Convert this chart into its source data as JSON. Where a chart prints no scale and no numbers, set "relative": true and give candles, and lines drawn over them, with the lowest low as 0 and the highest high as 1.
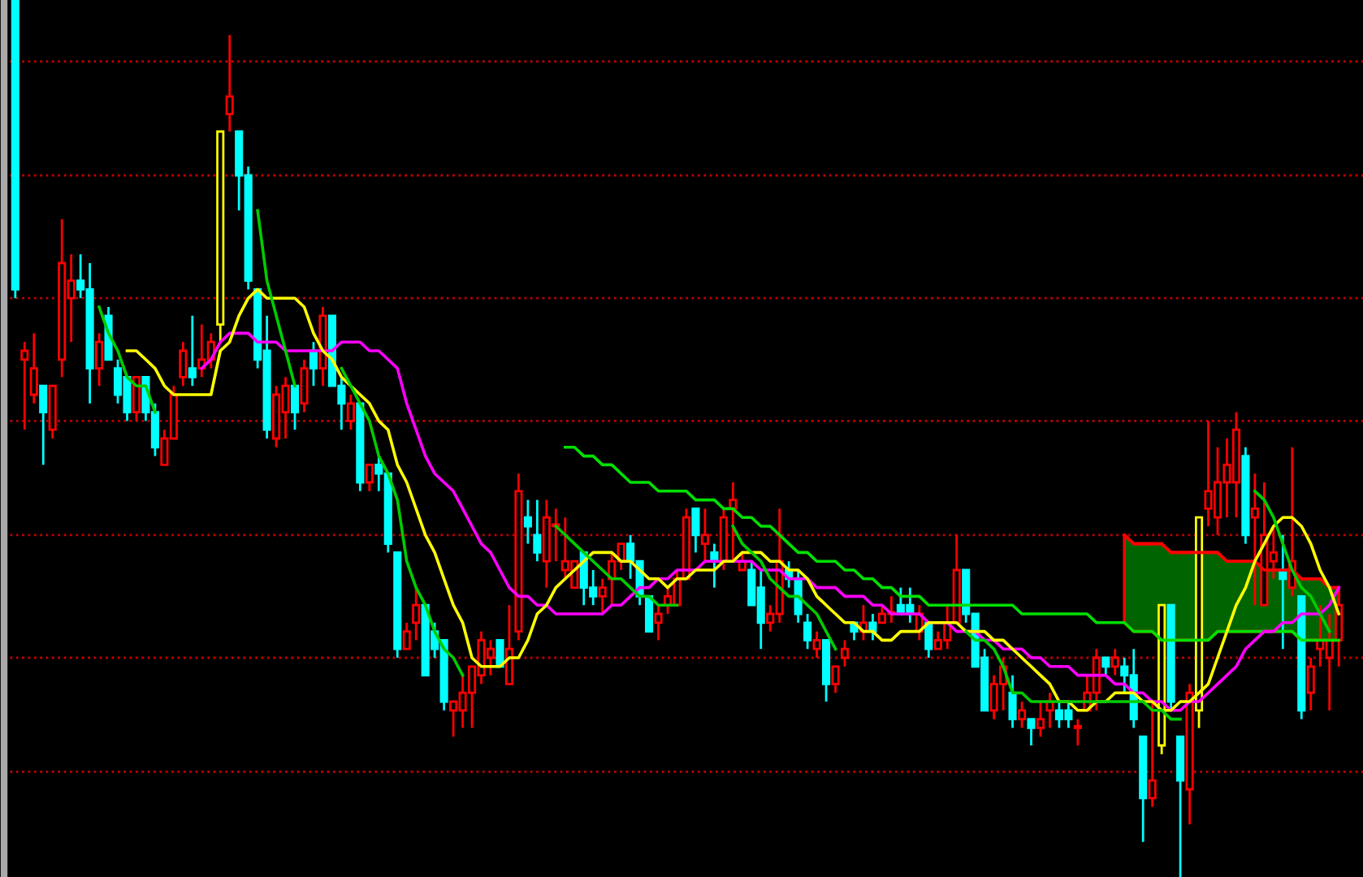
{
  "chart_data": {
    "type": "candlestick",
    "relative": true,
    "categories": [
      null,
      null,
      null,
      null,
      null,
      null,
      null,
      null,
      null,
      null,
      null,
      null,
      null,
      null,
      null,
      null,
      null,
      null,
      null,
      null,
      null,
      null,
      null,
      null,
      null,
      null,
      null,
      null,
      null,
      null,
      null,
      null,
      null,
      null,
      null,
      null,
      null,
      null,
      null,
      null,
      null,
      null,
      null,
      null,
      null,
      null,
      null,
      null,
      null,
      null,
      null,
      null,
      null,
      null,
      null,
      null,
      null,
      null,
      null,
      null,
      null,
      null,
      null,
      null,
      null,
      null,
      null,
      null,
      null,
      null,
      null,
      null,
      null,
      null,
      null,
      null,
      null,
      null,
      null,
      null,
      null,
      null,
      null,
      null,
      null,
      null,
      null,
      null,
      null,
      null,
      null,
      null,
      null,
      null,
      null,
      null,
      null,
      null,
      null,
      null,
      null,
      null,
      null,
      null,
      null,
      null,
      null,
      null,
      null,
      null,
      null,
      null,
      null,
      null,
      null,
      null,
      null,
      null,
      null,
      null,
      null,
      null,
      null,
      null,
      null,
      null,
      null,
      null,
      null,
      null,
      null,
      null,
      null,
      null,
      null,
      null,
      null,
      null,
      null,
      null,
      null,
      null,
      null
    ],
    "ohlc": [
      [
        1.0,
        1.0,
        0.66,
        0.67
      ],
      [
        0.59,
        0.61,
        0.51,
        0.6
      ],
      [
        0.55,
        0.62,
        0.54,
        0.58
      ],
      [
        0.56,
        0.56,
        0.47,
        0.53
      ],
      [
        0.51,
        0.56,
        0.5,
        0.56
      ],
      [
        0.59,
        0.75,
        0.57,
        0.7
      ],
      [
        0.66,
        0.71,
        0.61,
        0.68
      ],
      [
        0.68,
        0.71,
        0.66,
        0.67
      ],
      [
        0.67,
        0.7,
        0.54,
        0.58
      ],
      [
        0.58,
        0.62,
        0.56,
        0.61
      ],
      [
        0.64,
        0.65,
        0.59,
        0.59
      ],
      [
        0.58,
        0.59,
        0.54,
        0.55
      ],
      [
        0.57,
        0.57,
        0.52,
        0.53
      ],
      [
        0.53,
        0.57,
        0.52,
        0.57
      ],
      [
        0.57,
        0.57,
        0.52,
        0.53
      ],
      [
        0.53,
        0.54,
        0.48,
        0.49
      ],
      [
        0.47,
        0.51,
        0.47,
        0.5
      ],
      [
        0.5,
        0.56,
        0.5,
        0.55
      ],
      [
        0.57,
        0.61,
        0.56,
        0.6
      ],
      [
        0.58,
        0.64,
        0.56,
        0.57
      ],
      [
        0.58,
        0.63,
        0.57,
        0.59
      ],
      [
        0.59,
        0.62,
        0.58,
        0.61
      ],
      [
        0.63,
        0.85,
        0.61,
        0.85
      ],
      [
        0.87,
        0.96,
        0.85,
        0.89
      ],
      [
        0.85,
        0.85,
        0.76,
        0.8
      ],
      [
        0.8,
        0.81,
        0.67,
        0.68
      ],
      [
        0.67,
        0.67,
        0.58,
        0.59
      ],
      [
        0.6,
        0.64,
        0.5,
        0.51
      ],
      [
        0.5,
        0.56,
        0.49,
        0.55
      ],
      [
        0.53,
        0.57,
        0.5,
        0.56
      ],
      [
        0.56,
        0.56,
        0.51,
        0.53
      ],
      [
        0.54,
        0.59,
        0.53,
        0.58
      ],
      [
        0.6,
        0.61,
        0.56,
        0.58
      ],
      [
        0.58,
        0.65,
        0.56,
        0.64
      ],
      [
        0.64,
        0.64,
        0.56,
        0.56
      ],
      [
        0.56,
        0.57,
        0.51,
        0.54
      ],
      [
        0.52,
        0.55,
        0.51,
        0.54
      ],
      [
        0.54,
        0.54,
        0.44,
        0.45
      ],
      [
        0.45,
        0.47,
        0.44,
        0.47
      ],
      [
        0.47,
        0.48,
        0.44,
        0.46
      ],
      [
        0.46,
        0.46,
        0.37,
        0.38
      ],
      [
        0.37,
        0.37,
        0.25,
        0.26
      ],
      [
        0.26,
        0.29,
        0.26,
        0.28
      ],
      [
        0.29,
        0.33,
        0.27,
        0.31
      ],
      [
        0.31,
        0.31,
        0.23,
        0.23
      ],
      [
        0.28,
        0.29,
        0.25,
        0.26
      ],
      [
        0.27,
        0.27,
        0.19,
        0.2
      ],
      [
        0.19,
        0.2,
        0.16,
        0.2
      ],
      [
        0.19,
        0.23,
        0.17,
        0.21
      ],
      [
        0.21,
        0.24,
        0.17,
        0.24
      ],
      [
        0.23,
        0.28,
        0.22,
        0.27
      ],
      [
        0.25,
        0.27,
        0.23,
        0.26
      ],
      [
        0.27,
        0.27,
        0.24,
        0.24
      ],
      [
        0.22,
        0.31,
        0.22,
        0.26
      ],
      [
        0.28,
        0.46,
        0.27,
        0.44
      ],
      [
        0.41,
        0.43,
        0.38,
        0.4
      ],
      [
        0.39,
        0.43,
        0.36,
        0.37
      ],
      [
        0.36,
        0.43,
        0.33,
        0.41
      ],
      [
        0.4,
        0.42,
        0.36,
        0.4
      ],
      [
        0.35,
        0.41,
        0.34,
        0.36
      ],
      [
        0.33,
        0.36,
        0.33,
        0.36
      ],
      [
        0.37,
        0.37,
        0.31,
        0.33
      ],
      [
        0.33,
        0.35,
        0.31,
        0.32
      ],
      [
        0.32,
        0.34,
        0.3,
        0.33
      ],
      [
        0.34,
        0.37,
        0.31,
        0.36
      ],
      [
        0.36,
        0.38,
        0.35,
        0.38
      ],
      [
        0.38,
        0.39,
        0.34,
        0.36
      ],
      [
        0.36,
        0.36,
        0.31,
        0.32
      ],
      [
        0.32,
        0.32,
        0.28,
        0.28
      ],
      [
        0.29,
        0.31,
        0.27,
        0.3
      ],
      [
        0.31,
        0.33,
        0.3,
        0.32
      ],
      [
        0.31,
        0.35,
        0.31,
        0.34
      ],
      [
        0.34,
        0.42,
        0.34,
        0.41
      ],
      [
        0.42,
        0.42,
        0.37,
        0.39
      ],
      [
        0.38,
        0.42,
        0.36,
        0.39
      ],
      [
        0.37,
        0.38,
        0.33,
        0.36
      ],
      [
        0.36,
        0.42,
        0.35,
        0.41
      ],
      [
        0.42,
        0.45,
        0.36,
        0.43
      ],
      [
        0.35,
        0.37,
        0.35,
        0.36
      ],
      [
        0.35,
        0.36,
        0.31,
        0.31
      ],
      [
        0.33,
        0.35,
        0.26,
        0.29
      ],
      [
        0.29,
        0.31,
        0.28,
        0.3
      ],
      [
        0.3,
        0.42,
        0.29,
        0.36
      ],
      [
        0.35,
        0.36,
        0.33,
        0.34
      ],
      [
        0.34,
        0.35,
        0.29,
        0.3
      ],
      [
        0.29,
        0.3,
        0.26,
        0.27
      ],
      [
        0.26,
        0.28,
        0.25,
        0.27
      ],
      [
        0.27,
        0.27,
        0.2,
        0.22
      ],
      [
        0.22,
        0.24,
        0.21,
        0.24
      ],
      [
        0.25,
        0.27,
        0.24,
        0.26
      ],
      [
        0.29,
        0.29,
        0.27,
        0.28
      ],
      [
        0.28,
        0.31,
        0.27,
        0.29
      ],
      [
        0.29,
        0.3,
        0.27,
        0.28
      ],
      [
        0.29,
        0.31,
        0.29,
        0.3
      ],
      [
        0.3,
        0.32,
        0.29,
        0.3
      ],
      [
        0.31,
        0.33,
        0.3,
        0.3
      ],
      [
        0.31,
        0.33,
        0.29,
        0.3
      ],
      [
        0.28,
        0.31,
        0.27,
        0.3
      ],
      [
        0.29,
        0.29,
        0.25,
        0.26
      ],
      [
        0.26,
        0.28,
        0.26,
        0.27
      ],
      [
        0.27,
        0.31,
        0.26,
        0.29
      ],
      [
        0.29,
        0.39,
        0.29,
        0.35
      ],
      [
        0.35,
        0.35,
        0.29,
        0.3
      ],
      [
        0.3,
        0.3,
        0.24,
        0.24
      ],
      [
        0.25,
        0.26,
        0.19,
        0.19
      ],
      [
        0.19,
        0.23,
        0.18,
        0.22
      ],
      [
        0.22,
        0.25,
        0.19,
        0.24
      ],
      [
        0.21,
        0.23,
        0.17,
        0.18
      ],
      [
        0.18,
        0.2,
        0.17,
        0.19
      ],
      [
        0.18,
        0.18,
        0.15,
        0.17
      ],
      [
        0.17,
        0.2,
        0.16,
        0.18
      ],
      [
        0.19,
        0.21,
        0.17,
        0.2
      ],
      [
        0.19,
        0.2,
        0.17,
        0.18
      ],
      [
        0.19,
        0.2,
        0.17,
        0.18
      ],
      [
        0.17,
        0.18,
        0.15,
        0.17
      ],
      [
        0.19,
        0.23,
        0.19,
        0.21
      ],
      [
        0.21,
        0.26,
        0.19,
        0.25
      ],
      [
        0.25,
        0.25,
        0.23,
        0.24
      ],
      [
        0.24,
        0.26,
        0.23,
        0.25
      ],
      [
        0.24,
        0.25,
        0.21,
        0.23
      ],
      [
        0.23,
        0.26,
        0.17,
        0.18
      ],
      [
        0.16,
        0.16,
        0.04,
        0.09
      ],
      [
        0.09,
        0.2,
        0.08,
        0.11
      ],
      [
        0.15,
        0.31,
        0.14,
        0.31
      ],
      [
        0.31,
        0.31,
        0.19,
        0.2
      ],
      [
        0.16,
        0.16,
        0.0,
        0.11
      ],
      [
        0.1,
        0.22,
        0.06,
        0.21
      ],
      [
        0.19,
        0.41,
        0.17,
        0.41
      ],
      [
        0.42,
        0.52,
        0.4,
        0.44
      ],
      [
        0.41,
        0.49,
        0.39,
        0.45
      ],
      [
        0.45,
        0.5,
        0.41,
        0.47
      ],
      [
        0.45,
        0.53,
        0.41,
        0.51
      ],
      [
        0.48,
        0.49,
        0.38,
        0.39
      ],
      [
        0.41,
        0.46,
        0.31,
        0.42
      ],
      [
        0.31,
        0.45,
        0.31,
        0.39
      ],
      [
        0.36,
        0.4,
        0.34,
        0.37
      ],
      [
        0.35,
        0.39,
        0.26,
        0.34
      ],
      [
        0.33,
        0.49,
        0.32,
        0.36
      ],
      [
        0.32,
        0.32,
        0.18,
        0.19
      ],
      [
        0.21,
        0.25,
        0.19,
        0.24
      ],
      [
        0.26,
        0.31,
        0.24,
        0.27
      ],
      [
        0.25,
        0.3,
        0.19,
        0.27
      ],
      [
        0.27,
        0.33,
        0.24,
        0.31
      ]
    ],
    "colors": [
      "#00ffff",
      "#ff0000",
      "#ff0000",
      "#00ffff",
      "#ff0000",
      "#ff0000",
      "#ff0000",
      "#00ffff",
      "#00ffff",
      "#ff0000",
      "#00ffff",
      "#00ffff",
      "#00ffff",
      "#ff0000",
      "#00ffff",
      "#00ffff",
      "#ff0000",
      "#ff0000",
      "#ff0000",
      "#00ffff",
      "#ff0000",
      "#ff0000",
      "#ffff00",
      "#ff0000",
      "#00ffff",
      "#00ffff",
      "#00ffff",
      "#00ffff",
      "#ff0000",
      "#ff0000",
      "#00ffff",
      "#ff0000",
      "#00ffff",
      "#ff0000",
      "#00ffff",
      "#00ffff",
      "#ff0000",
      "#00ffff",
      "#ff0000",
      "#00ffff",
      "#00ffff",
      "#00ffff",
      "#ff0000",
      "#ff0000",
      "#00ffff",
      "#00ffff",
      "#00ffff",
      "#ff0000",
      "#ff0000",
      "#ff0000",
      "#ff0000",
      "#ff0000",
      "#00ffff",
      "#ff0000",
      "#ff0000",
      "#00ffff",
      "#00ffff",
      "#ff0000",
      "#ff0000",
      "#ff0000",
      "#ff0000",
      "#00ffff",
      "#00ffff",
      "#ff0000",
      "#ff0000",
      "#ff0000",
      "#00ffff",
      "#00ffff",
      "#00ffff",
      "#ff0000",
      "#ff0000",
      "#ff0000",
      "#ff0000",
      "#00ffff",
      "#ff0000",
      "#00ffff",
      "#ff0000",
      "#ff0000",
      "#ff0000",
      "#00ffff",
      "#00ffff",
      "#ff0000",
      "#ff0000",
      "#00ffff",
      "#00ffff",
      "#00ffff",
      "#ff0000",
      "#00ffff",
      "#ff0000",
      "#ff0000",
      "#00ffff",
      "#ff0000",
      "#00ffff",
      "#ff0000",
      "#ff0000",
      "#00ffff",
      "#00ffff",
      "#ff0000",
      "#00ffff",
      "#ff0000",
      "#ff0000",
      "#ff0000",
      "#00ffff",
      "#00ffff",
      "#00ffff",
      "#ff0000",
      "#ff0000",
      "#00ffff",
      "#ff0000",
      "#00ffff",
      "#ff0000",
      "#ff0000",
      "#00ffff",
      "#00ffff",
      "#ff0000",
      "#ff0000",
      "#ff0000",
      "#00ffff",
      "#ff0000",
      "#00ffff",
      "#00ffff",
      "#00ffff",
      "#ff0000",
      "#ffff00",
      "#00ffff",
      "#00ffff",
      "#ff0000",
      "#ffff00",
      "#ff0000",
      "#ff0000",
      "#ff0000",
      "#ff0000",
      "#00ffff",
      "#ff0000",
      "#ff0000",
      "#ff0000",
      "#00ffff",
      "#ff0000",
      "#00ffff",
      "#ff0000",
      "#ff0000",
      "#ff0000",
      "#ff0000"
    ],
    "series": [
      {
        "type": "line",
        "color": "#ff0000",
        "values": [
          null,
          null,
          null,
          null,
          null,
          null,
          null,
          null,
          null,
          null,
          null,
          null,
          null,
          null,
          null,
          null,
          null,
          null,
          null,
          null,
          null,
          null,
          null,
          null,
          null,
          null,
          null,
          null,
          null,
          null,
          null,
          null,
          null,
          null,
          null,
          null,
          null,
          null,
          null,
          null,
          null,
          null,
          null,
          null,
          null,
          null,
          null,
          null,
          null,
          null,
          null,
          null,
          null,
          null,
          null,
          null,
          null,
          null,
          null,
          null,
          null,
          null,
          null,
          null,
          null,
          null,
          null,
          null,
          null,
          null,
          null,
          null,
          null,
          null,
          null,
          null,
          null,
          null,
          null,
          null,
          null,
          null,
          null,
          null,
          null,
          null,
          null,
          null,
          null,
          null,
          null,
          null,
          null,
          null,
          null,
          null,
          null,
          null,
          null,
          null,
          null,
          null,
          null,
          null,
          null,
          null,
          null,
          null,
          null,
          null,
          null,
          null,
          null,
          null,
          null,
          null,
          null,
          null,
          null,
          0.39,
          0.38,
          0.38,
          0.38,
          0.38,
          0.37,
          0.37,
          0.37,
          0.37,
          0.37,
          0.37,
          0.36,
          0.36,
          0.36,
          0.36,
          0.35,
          0.35,
          0.35,
          0.35,
          0.34,
          0.34,
          0.34,
          0.33,
          0.33
        ],
        "upper": [
          null,
          null,
          null,
          null,
          null,
          null,
          null,
          null,
          null,
          null,
          null,
          null,
          null,
          null,
          null,
          null,
          null,
          null,
          null,
          null,
          null,
          null,
          null,
          null,
          null,
          null,
          null,
          null,
          null,
          null,
          null,
          null,
          null,
          null,
          null,
          null,
          null,
          null,
          null,
          null,
          null,
          null,
          null,
          null,
          null,
          null,
          null,
          null,
          null,
          null,
          null,
          null,
          null,
          null,
          null,
          null,
          null,
          null,
          null,
          null,
          null,
          null,
          null,
          null,
          null,
          null,
          null,
          null,
          null,
          null,
          null,
          null,
          null,
          null,
          null,
          null,
          null,
          null,
          null,
          null,
          null,
          null,
          null,
          null,
          null,
          null,
          null,
          null,
          null,
          null,
          null,
          null,
          null,
          null,
          null,
          null,
          null,
          null,
          null,
          null,
          null,
          null,
          null,
          null,
          null,
          null,
          null,
          null,
          null,
          null,
          null,
          null,
          null,
          null,
          null,
          null,
          null,
          null,
          null,
          0.39,
          0.38,
          0.38,
          0.38,
          0.38,
          0.37,
          0.37,
          0.37,
          0.37,
          0.37,
          0.37,
          0.36,
          0.36,
          0.36,
          0.36,
          0.35,
          0.35,
          0.35,
          0.35,
          0.34,
          0.34,
          0.34,
          0.33,
          0.33
        ],
        "lower": [
          null,
          null,
          null,
          null,
          null,
          null,
          null,
          null,
          null,
          null,
          null,
          null,
          null,
          null,
          null,
          null,
          null,
          null,
          null,
          null,
          null,
          null,
          null,
          null,
          null,
          null,
          null,
          null,
          null,
          null,
          null,
          null,
          null,
          null,
          null,
          null,
          null,
          null,
          null,
          null,
          null,
          null,
          null,
          null,
          null,
          null,
          null,
          null,
          null,
          null,
          null,
          null,
          null,
          null,
          null,
          null,
          null,
          null,
          null,
          null,
          null,
          null,
          null,
          null,
          null,
          null,
          null,
          null,
          null,
          null,
          null,
          null,
          null,
          null,
          null,
          null,
          null,
          null,
          null,
          null,
          null,
          null,
          null,
          null,
          null,
          null,
          null,
          null,
          null,
          null,
          null,
          null,
          null,
          null,
          null,
          null,
          null,
          null,
          null,
          null,
          null,
          null,
          null,
          null,
          null,
          null,
          null,
          null,
          null,
          null,
          null,
          null,
          null,
          null,
          null,
          null,
          null,
          null,
          null,
          0.29,
          0.28,
          0.28,
          0.28,
          0.27,
          0.27,
          0.27,
          0.27,
          0.27,
          0.27,
          0.28,
          0.28,
          0.28,
          0.28,
          0.28,
          0.28,
          0.28,
          0.28,
          0.28,
          0.27,
          0.27,
          0.27,
          0.27,
          0.27
        ]
      },
      {
        "type": "line",
        "color": "#00e000",
        "values": [
          null,
          null,
          null,
          null,
          null,
          null,
          null,
          null,
          null,
          null,
          null,
          null,
          null,
          null,
          null,
          null,
          null,
          null,
          null,
          null,
          null,
          null,
          null,
          null,
          null,
          null,
          null,
          null,
          null,
          null,
          null,
          null,
          null,
          null,
          null,
          null,
          null,
          null,
          null,
          null,
          null,
          null,
          null,
          null,
          null,
          null,
          null,
          null,
          null,
          null,
          null,
          null,
          null,
          null,
          null,
          null,
          null,
          null,
          null,
          0.49,
          0.49,
          0.48,
          0.48,
          0.47,
          0.47,
          0.46,
          0.45,
          0.45,
          0.45,
          0.44,
          0.44,
          0.44,
          0.44,
          0.43,
          0.43,
          0.43,
          0.42,
          0.42,
          0.41,
          0.41,
          0.4,
          0.4,
          0.39,
          0.38,
          0.37,
          0.37,
          0.36,
          0.36,
          0.36,
          0.35,
          0.35,
          0.34,
          0.34,
          0.33,
          0.33,
          0.32,
          0.32,
          0.32,
          0.31,
          0.31,
          0.31,
          0.31,
          0.31,
          0.31,
          0.31,
          0.31,
          0.31,
          0.31,
          0.3,
          0.3,
          0.3,
          0.3,
          0.3,
          0.3,
          0.3,
          0.3,
          0.29,
          0.29,
          0.29,
          0.29,
          0.28,
          0.28,
          0.28,
          0.27,
          0.27,
          0.27,
          0.27,
          0.27,
          0.27,
          0.28,
          0.28,
          0.28,
          0.28,
          0.28,
          0.28,
          0.28,
          0.28,
          0.28,
          0.27,
          0.27,
          0.27,
          0.27,
          0.27
        ]
      },
      {
        "type": "line",
        "color": "#ff00ff",
        "values": [
          null,
          null,
          null,
          null,
          null,
          null,
          null,
          null,
          null,
          null,
          null,
          null,
          null,
          null,
          null,
          null,
          null,
          null,
          null,
          null,
          0.58,
          0.59,
          0.61,
          0.62,
          0.62,
          0.62,
          0.61,
          0.61,
          0.61,
          0.6,
          0.6,
          0.6,
          0.6,
          0.6,
          0.6,
          0.61,
          0.61,
          0.61,
          0.6,
          0.6,
          0.59,
          0.58,
          0.54,
          0.51,
          0.48,
          0.46,
          0.45,
          0.44,
          0.42,
          0.4,
          0.38,
          0.37,
          0.35,
          0.33,
          0.32,
          0.32,
          0.31,
          0.31,
          0.3,
          0.3,
          0.3,
          0.3,
          0.3,
          0.3,
          0.31,
          0.31,
          0.32,
          0.33,
          0.33,
          0.34,
          0.34,
          0.35,
          0.35,
          0.35,
          0.36,
          0.36,
          0.36,
          0.36,
          0.36,
          0.36,
          0.35,
          0.35,
          0.35,
          0.34,
          0.34,
          0.34,
          0.33,
          0.33,
          0.33,
          0.32,
          0.32,
          0.32,
          0.31,
          0.31,
          0.3,
          0.3,
          0.3,
          0.3,
          0.29,
          0.29,
          0.29,
          0.28,
          0.28,
          0.28,
          0.27,
          0.27,
          0.26,
          0.26,
          0.26,
          0.25,
          0.25,
          0.24,
          0.24,
          0.24,
          0.23,
          0.23,
          0.23,
          0.23,
          0.22,
          0.22,
          0.21,
          0.21,
          0.2,
          0.2,
          0.19,
          0.19,
          0.2,
          0.2,
          0.21,
          0.22,
          0.23,
          0.24,
          0.26,
          0.27,
          0.28,
          0.28,
          0.29,
          0.29,
          0.3,
          0.3,
          0.3,
          0.31,
          0.33
        ]
      },
      {
        "type": "line",
        "color": "#ffff00",
        "values": [
          null,
          null,
          null,
          null,
          null,
          null,
          null,
          null,
          null,
          null,
          null,
          null,
          0.6,
          0.6,
          0.59,
          0.58,
          0.56,
          0.55,
          0.55,
          0.55,
          0.55,
          0.55,
          0.6,
          0.61,
          0.64,
          0.66,
          0.67,
          0.66,
          0.66,
          0.66,
          0.66,
          0.65,
          0.62,
          0.6,
          0.59,
          0.57,
          0.56,
          0.55,
          0.54,
          0.52,
          0.51,
          0.47,
          0.45,
          0.42,
          0.39,
          0.37,
          0.34,
          0.31,
          0.29,
          0.25,
          0.24,
          0.24,
          0.24,
          0.25,
          0.25,
          0.27,
          0.3,
          0.31,
          0.33,
          0.34,
          0.35,
          0.36,
          0.37,
          0.37,
          0.37,
          0.36,
          0.36,
          0.35,
          0.34,
          0.34,
          0.33,
          0.34,
          0.34,
          0.35,
          0.35,
          0.35,
          0.36,
          0.36,
          0.37,
          0.37,
          0.37,
          0.36,
          0.36,
          0.35,
          0.35,
          0.34,
          0.32,
          0.31,
          0.3,
          0.29,
          0.29,
          0.28,
          0.28,
          0.27,
          0.27,
          0.28,
          0.28,
          0.28,
          0.29,
          0.29,
          0.29,
          0.29,
          0.28,
          0.28,
          0.28,
          0.27,
          0.27,
          0.26,
          0.25,
          0.24,
          0.23,
          0.22,
          0.2,
          0.2,
          0.19,
          0.19,
          0.2,
          0.2,
          0.21,
          0.21,
          0.21,
          0.2,
          0.2,
          0.19,
          0.19,
          0.2,
          0.2,
          0.21,
          0.22,
          0.25,
          0.28,
          0.31,
          0.33,
          0.36,
          0.38,
          0.4,
          0.41,
          0.41,
          0.4,
          0.38,
          0.35,
          0.33,
          0.3
        ]
      },
      {
        "type": "line",
        "color": "#00cc00",
        "values": [
          null,
          null,
          null,
          null,
          null,
          null,
          null,
          null,
          null,
          0.65,
          0.62,
          0.6,
          0.57,
          0.56,
          0.56,
          0.53,
          null,
          null,
          null,
          null,
          null,
          null,
          null,
          null,
          null,
          null,
          0.76,
          0.68,
          0.64,
          0.6,
          0.56,
          null,
          null,
          null,
          null,
          0.58,
          0.56,
          0.54,
          0.52,
          0.48,
          0.46,
          0.43,
          0.36,
          0.33,
          0.31,
          0.28,
          0.26,
          0.25,
          0.23,
          null,
          null,
          null,
          null,
          null,
          null,
          null,
          null,
          null,
          0.4,
          0.39,
          0.38,
          0.37,
          0.36,
          0.35,
          0.34,
          0.34,
          0.33,
          0.32,
          0.32,
          0.31,
          0.31,
          0.31,
          null,
          null,
          null,
          null,
          null,
          0.4,
          0.38,
          0.37,
          0.36,
          0.34,
          0.33,
          0.32,
          0.32,
          0.31,
          0.3,
          0.28,
          0.26,
          null,
          null,
          null,
          null,
          null,
          null,
          null,
          null,
          null,
          null,
          null,
          null,
          null,
          0.28,
          0.27,
          0.27,
          0.26,
          0.24,
          0.21,
          0.21,
          0.2,
          0.2,
          0.2,
          0.2,
          0.2,
          0.2,
          0.2,
          0.2,
          0.2,
          0.2,
          0.2,
          0.2,
          0.2,
          0.19,
          0.19,
          0.18,
          0.18,
          null,
          null,
          null,
          null,
          null,
          null,
          null,
          0.44,
          0.43,
          0.41,
          0.38,
          0.35,
          0.33,
          0.32,
          0.3,
          0.28,
          null
        ]
      }
    ],
    "ref_lines": [
      {
        "axis": "y",
        "value": 0.93,
        "color": "#c00000",
        "line_style": "dotted"
      },
      {
        "axis": "y",
        "value": 0.8,
        "color": "#c00000",
        "line_style": "dotted"
      },
      {
        "axis": "y",
        "value": 0.66,
        "color": "#c00000",
        "line_style": "dotted"
      },
      {
        "axis": "y",
        "value": 0.52,
        "color": "#c00000",
        "line_style": "dotted"
      },
      {
        "axis": "y",
        "value": 0.39,
        "color": "#c00000",
        "line_style": "dotted"
      },
      {
        "axis": "y",
        "value": 0.25,
        "color": "#c00000",
        "line_style": "dotted"
      },
      {
        "axis": "y",
        "value": 0.12,
        "color": "#c00000",
        "line_style": "dotted"
      }
    ],
    "legend": false
  }
}
